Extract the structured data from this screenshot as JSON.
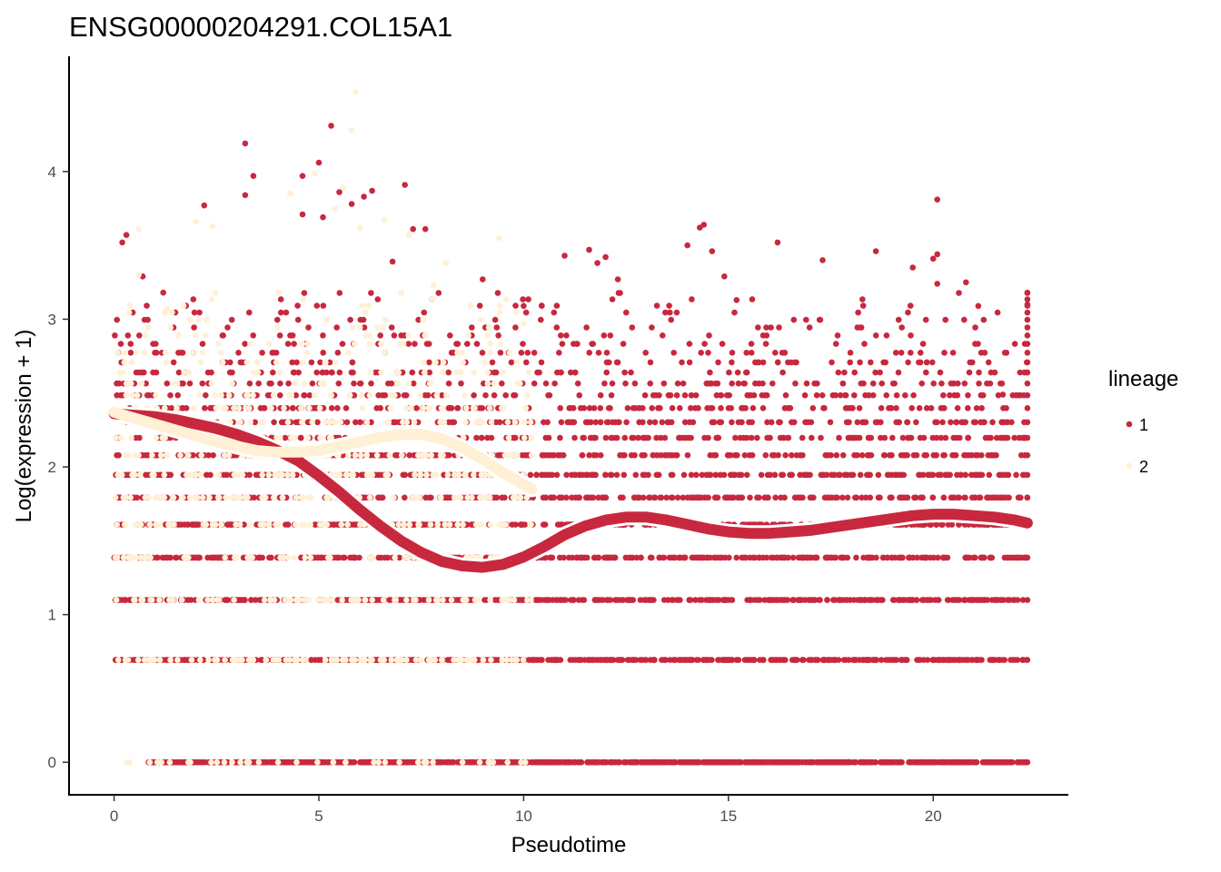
{
  "chart_data": {
    "type": "scatter",
    "title": "ENSG00000204291.COL15A1",
    "xlabel": "Pseudotime",
    "ylabel": "Log(expression + 1)",
    "xlim": [
      -1.1,
      23.3
    ],
    "ylim": [
      -0.22,
      4.78
    ],
    "x_ticks": [
      0,
      5,
      10,
      15,
      20
    ],
    "y_ticks": [
      0,
      1,
      2,
      3,
      4
    ],
    "grid": false,
    "legend": {
      "title": "lineage",
      "position": "right",
      "entries": [
        {
          "label": "1",
          "color": "#c8283e"
        },
        {
          "label": "2",
          "color": "#fff0d6"
        }
      ]
    },
    "expression_levels": [
      0,
      0.693,
      1.099,
      1.386,
      1.609,
      1.792,
      1.946,
      2.079,
      2.197,
      2.303,
      2.398,
      2.485,
      2.565,
      2.639,
      2.708,
      2.773,
      2.833,
      2.89,
      2.944,
      2.996,
      3.045,
      3.091,
      3.135,
      3.178
    ],
    "series": [
      {
        "name": "1",
        "color": "#c8283e",
        "x_range": [
          0,
          22.3
        ],
        "points": [
          [
            0.2,
            3.52
          ],
          [
            0.3,
            3.57
          ],
          [
            0.7,
            3.29
          ],
          [
            1.2,
            3.18
          ],
          [
            2.2,
            3.77
          ],
          [
            3.2,
            4.19
          ],
          [
            3.2,
            3.84
          ],
          [
            3.4,
            3.97
          ],
          [
            4.6,
            3.97
          ],
          [
            4.6,
            3.71
          ],
          [
            5.0,
            4.06
          ],
          [
            5.1,
            3.69
          ],
          [
            5.3,
            4.31
          ],
          [
            5.5,
            3.86
          ],
          [
            5.8,
            3.78
          ],
          [
            6.1,
            3.83
          ],
          [
            6.3,
            3.87
          ],
          [
            6.8,
            3.39
          ],
          [
            7.1,
            3.91
          ],
          [
            7.3,
            3.61
          ],
          [
            7.6,
            3.61
          ],
          [
            9.0,
            3.27
          ],
          [
            10.0,
            3.09
          ],
          [
            11.0,
            3.43
          ],
          [
            11.6,
            3.47
          ],
          [
            11.8,
            3.38
          ],
          [
            12.0,
            3.42
          ],
          [
            12.3,
            3.27
          ],
          [
            14.0,
            3.5
          ],
          [
            14.3,
            3.62
          ],
          [
            14.4,
            3.64
          ],
          [
            14.6,
            3.46
          ],
          [
            14.9,
            3.29
          ],
          [
            15.2,
            3.13
          ],
          [
            16.2,
            3.52
          ],
          [
            17.3,
            3.4
          ],
          [
            18.6,
            3.46
          ],
          [
            19.5,
            3.35
          ],
          [
            20.0,
            3.41
          ],
          [
            20.1,
            3.81
          ],
          [
            20.1,
            3.44
          ],
          [
            20.1,
            3.24
          ],
          [
            20.8,
            3.25
          ],
          [
            21.1,
            3.09
          ],
          [
            21.7,
            2.49
          ],
          [
            22.3,
            3.18
          ],
          [
            22.3,
            3.1
          ]
        ],
        "smooth": [
          [
            0.0,
            2.36
          ],
          [
            0.5,
            2.35
          ],
          [
            1.0,
            2.34
          ],
          [
            1.5,
            2.32
          ],
          [
            2.0,
            2.29
          ],
          [
            2.5,
            2.26
          ],
          [
            3.0,
            2.22
          ],
          [
            3.5,
            2.17
          ],
          [
            4.0,
            2.11
          ],
          [
            4.5,
            2.04
          ],
          [
            5.0,
            1.94
          ],
          [
            5.5,
            1.83
          ],
          [
            6.0,
            1.71
          ],
          [
            6.5,
            1.6
          ],
          [
            7.0,
            1.5
          ],
          [
            7.5,
            1.42
          ],
          [
            8.0,
            1.36
          ],
          [
            8.5,
            1.33
          ],
          [
            9.0,
            1.32
          ],
          [
            9.5,
            1.34
          ],
          [
            10.0,
            1.39
          ],
          [
            10.5,
            1.46
          ],
          [
            11.0,
            1.54
          ],
          [
            11.5,
            1.6
          ],
          [
            12.0,
            1.64
          ],
          [
            12.5,
            1.66
          ],
          [
            13.0,
            1.66
          ],
          [
            13.5,
            1.64
          ],
          [
            14.0,
            1.61
          ],
          [
            14.5,
            1.58
          ],
          [
            15.0,
            1.56
          ],
          [
            15.5,
            1.55
          ],
          [
            16.0,
            1.55
          ],
          [
            16.5,
            1.56
          ],
          [
            17.0,
            1.57
          ],
          [
            17.5,
            1.59
          ],
          [
            18.0,
            1.61
          ],
          [
            18.5,
            1.63
          ],
          [
            19.0,
            1.65
          ],
          [
            19.5,
            1.67
          ],
          [
            20.0,
            1.68
          ],
          [
            20.5,
            1.68
          ],
          [
            21.0,
            1.67
          ],
          [
            21.5,
            1.66
          ],
          [
            22.0,
            1.64
          ],
          [
            22.3,
            1.62
          ]
        ]
      },
      {
        "name": "2",
        "color": "#fff0d6",
        "x_range": [
          0,
          10.2
        ],
        "points": [
          [
            0.6,
            3.61
          ],
          [
            0.6,
            3.3
          ],
          [
            1.3,
            3.07
          ],
          [
            2.0,
            3.66
          ],
          [
            2.4,
            3.63
          ],
          [
            4.3,
            3.85
          ],
          [
            4.9,
            3.99
          ],
          [
            5.4,
            3.75
          ],
          [
            5.6,
            3.89
          ],
          [
            5.8,
            4.28
          ],
          [
            5.9,
            4.54
          ],
          [
            6.0,
            3.62
          ],
          [
            6.6,
            3.67
          ],
          [
            7.2,
            3.57
          ],
          [
            7.8,
            3.23
          ],
          [
            8.1,
            3.38
          ],
          [
            8.7,
            3.09
          ],
          [
            9.4,
            3.55
          ],
          [
            10.0,
            2.97
          ]
        ],
        "smooth": [
          [
            0.0,
            2.37
          ],
          [
            0.5,
            2.33
          ],
          [
            1.0,
            2.29
          ],
          [
            1.5,
            2.25
          ],
          [
            2.0,
            2.21
          ],
          [
            2.5,
            2.17
          ],
          [
            3.0,
            2.14
          ],
          [
            3.5,
            2.11
          ],
          [
            4.0,
            2.1
          ],
          [
            4.5,
            2.1
          ],
          [
            5.0,
            2.11
          ],
          [
            5.5,
            2.14
          ],
          [
            6.0,
            2.17
          ],
          [
            6.5,
            2.2
          ],
          [
            7.0,
            2.22
          ],
          [
            7.5,
            2.22
          ],
          [
            8.0,
            2.19
          ],
          [
            8.5,
            2.13
          ],
          [
            9.0,
            2.05
          ],
          [
            9.5,
            1.96
          ],
          [
            10.0,
            1.88
          ],
          [
            10.2,
            1.85
          ]
        ]
      }
    ]
  }
}
